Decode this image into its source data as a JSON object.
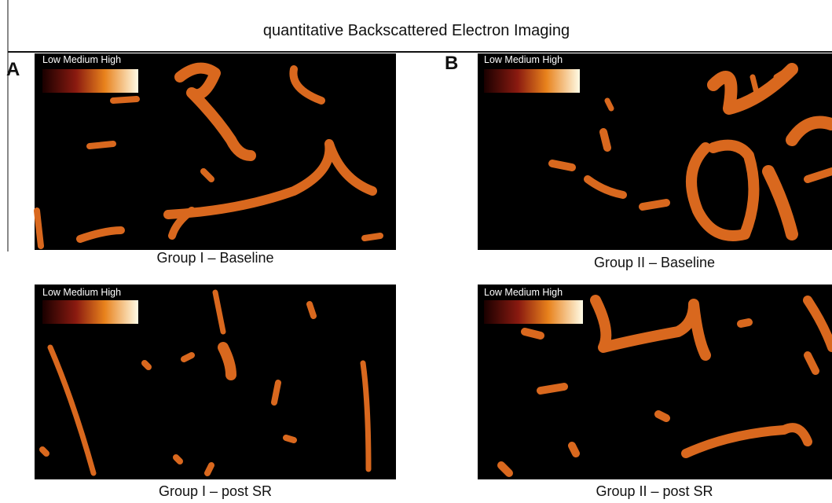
{
  "title": "quantitative Backscattered Electron Imaging",
  "panels": [
    {
      "letter": "A",
      "images": [
        {
          "legend": "Low Medium High",
          "caption": "Group I – Baseline"
        },
        {
          "legend": "Low Medium High",
          "caption": "Group I – post SR"
        }
      ]
    },
    {
      "letter": "B",
      "images": [
        {
          "legend": "Low Medium High",
          "caption": "Group II – Baseline"
        },
        {
          "legend": "Low Medium High",
          "caption": "Group II – post SR"
        }
      ]
    }
  ]
}
